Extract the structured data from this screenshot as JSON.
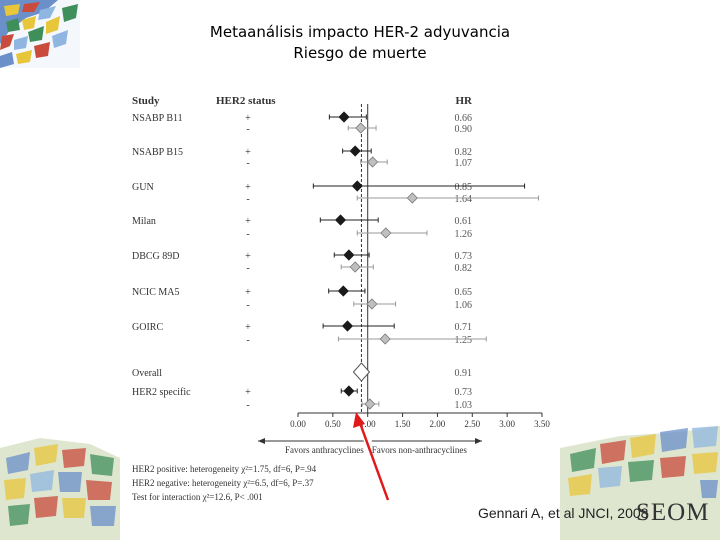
{
  "slide": {
    "title_line1": "Metaanálisis impacto HER-2 adyuvancia",
    "title_line2": "Riesgo de muerte",
    "citation": "Gennari A, et al JNCI, 2008",
    "brand": "SEOM",
    "arrow_color": "#e0191b"
  },
  "chart_data": {
    "type": "forest",
    "columns": {
      "study": "Study",
      "her2": "HER2 status",
      "hr": "HR"
    },
    "rows": [
      {
        "study": "NSABP B11",
        "her2": "+",
        "hr_label": "0.66",
        "hr": 0.66,
        "ci": [
          0.45,
          0.98
        ],
        "marker": "dark"
      },
      {
        "study": "",
        "her2": "-",
        "hr_label": "0.90",
        "hr": 0.9,
        "ci": [
          0.72,
          1.12
        ],
        "marker": "light"
      },
      {
        "study": "NSABP B15",
        "her2": "+",
        "hr_label": "0.82",
        "hr": 0.82,
        "ci": [
          0.64,
          1.05
        ],
        "marker": "dark"
      },
      {
        "study": "",
        "her2": "-",
        "hr_label": "1.07",
        "hr": 1.07,
        "ci": [
          0.9,
          1.28
        ],
        "marker": "light"
      },
      {
        "study": "GUN",
        "her2": "+",
        "hr_label": "0.85",
        "hr": 0.85,
        "ci": [
          0.22,
          3.25
        ],
        "marker": "dark"
      },
      {
        "study": "",
        "her2": "-",
        "hr_label": "1.64",
        "hr": 1.64,
        "ci": [
          0.85,
          3.45
        ],
        "marker": "light"
      },
      {
        "study": "Milan",
        "her2": "+",
        "hr_label": "0.61",
        "hr": 0.61,
        "ci": [
          0.32,
          1.15
        ],
        "marker": "dark"
      },
      {
        "study": "",
        "her2": "-",
        "hr_label": "1.26",
        "hr": 1.26,
        "ci": [
          0.85,
          1.85
        ],
        "marker": "light"
      },
      {
        "study": "DBCG 89D",
        "her2": "+",
        "hr_label": "0.73",
        "hr": 0.73,
        "ci": [
          0.52,
          1.02
        ],
        "marker": "dark"
      },
      {
        "study": "",
        "her2": "-",
        "hr_label": "0.82",
        "hr": 0.82,
        "ci": [
          0.62,
          1.08
        ],
        "marker": "light"
      },
      {
        "study": "NCIC MA5",
        "her2": "+",
        "hr_label": "0.65",
        "hr": 0.65,
        "ci": [
          0.44,
          0.96
        ],
        "marker": "dark"
      },
      {
        "study": "",
        "her2": "-",
        "hr_label": "1.06",
        "hr": 1.06,
        "ci": [
          0.8,
          1.4
        ],
        "marker": "light"
      },
      {
        "study": "GOIRC",
        "her2": "+",
        "hr_label": "0.71",
        "hr": 0.71,
        "ci": [
          0.36,
          1.38
        ],
        "marker": "dark"
      },
      {
        "study": "",
        "her2": "-",
        "hr_label": "1.25",
        "hr": 1.25,
        "ci": [
          0.58,
          2.7
        ],
        "marker": "light"
      },
      {
        "study": "Overall",
        "her2": "",
        "hr_label": "0.91",
        "hr": 0.91,
        "ci": [
          0.86,
          0.96
        ],
        "marker": "overall"
      },
      {
        "study": "HER2 specific",
        "her2": "+",
        "hr_label": "0.73",
        "hr": 0.73,
        "ci": [
          0.62,
          0.85
        ],
        "marker": "dark"
      },
      {
        "study": "",
        "her2": "-",
        "hr_label": "1.03",
        "hr": 1.03,
        "ci": [
          0.92,
          1.16
        ],
        "marker": "light"
      }
    ],
    "x_ticks": [
      "0.00",
      "0.50",
      "1.00",
      "1.50",
      "2.00",
      "2.50",
      "3.00",
      "3.50"
    ],
    "x_range": [
      0.0,
      3.5
    ],
    "reference_line": 1.0,
    "pooled_dashed_line": 0.91,
    "direction_left": "Favors anthracyclines",
    "direction_right": "Favors non-anthracyclines",
    "footnotes": [
      "HER2 positive: heterogeneity χ²=1.75, df=6, P=.94",
      "HER2 negative: heterogeneity χ²=6.5, df=6, P=.37",
      "Test for interaction χ²=12.6, P< .001"
    ]
  }
}
